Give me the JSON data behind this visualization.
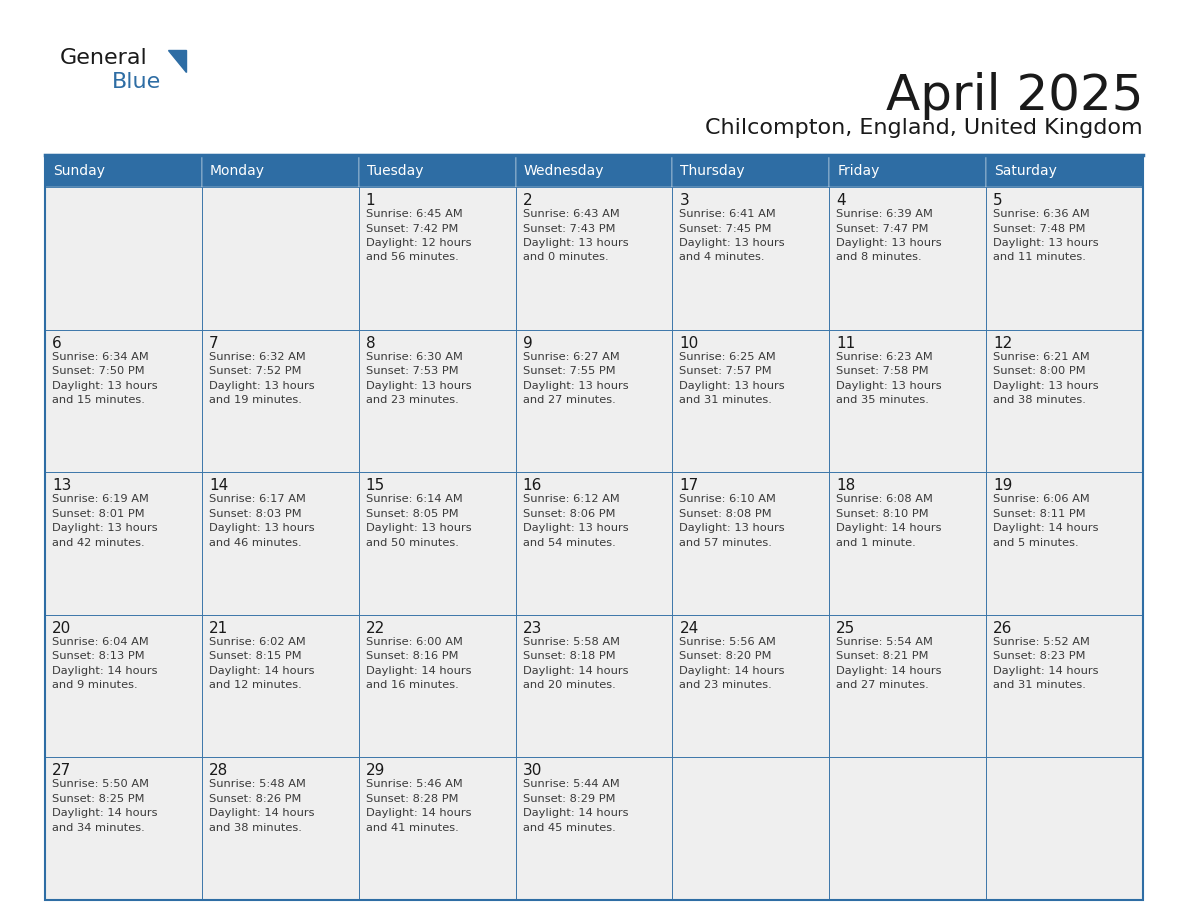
{
  "title": "April 2025",
  "subtitle": "Chilcompton, England, United Kingdom",
  "header_bg": "#2E6DA4",
  "header_text_color": "#FFFFFF",
  "cell_bg_light": "#EFEFEF",
  "border_color": "#2E6DA4",
  "title_color": "#1a1a1a",
  "subtitle_color": "#1a1a1a",
  "day_num_color": "#1a1a1a",
  "cell_text_color": "#3a3a3a",
  "day_names": [
    "Sunday",
    "Monday",
    "Tuesday",
    "Wednesday",
    "Thursday",
    "Friday",
    "Saturday"
  ],
  "days": [
    {
      "day": null,
      "sunrise": null,
      "sunset": null,
      "daylight": null
    },
    {
      "day": null,
      "sunrise": null,
      "sunset": null,
      "daylight": null
    },
    {
      "day": 1,
      "sunrise": "6:45 AM",
      "sunset": "7:42 PM",
      "daylight": "12 hours\nand 56 minutes."
    },
    {
      "day": 2,
      "sunrise": "6:43 AM",
      "sunset": "7:43 PM",
      "daylight": "13 hours\nand 0 minutes."
    },
    {
      "day": 3,
      "sunrise": "6:41 AM",
      "sunset": "7:45 PM",
      "daylight": "13 hours\nand 4 minutes."
    },
    {
      "day": 4,
      "sunrise": "6:39 AM",
      "sunset": "7:47 PM",
      "daylight": "13 hours\nand 8 minutes."
    },
    {
      "day": 5,
      "sunrise": "6:36 AM",
      "sunset": "7:48 PM",
      "daylight": "13 hours\nand 11 minutes."
    },
    {
      "day": 6,
      "sunrise": "6:34 AM",
      "sunset": "7:50 PM",
      "daylight": "13 hours\nand 15 minutes."
    },
    {
      "day": 7,
      "sunrise": "6:32 AM",
      "sunset": "7:52 PM",
      "daylight": "13 hours\nand 19 minutes."
    },
    {
      "day": 8,
      "sunrise": "6:30 AM",
      "sunset": "7:53 PM",
      "daylight": "13 hours\nand 23 minutes."
    },
    {
      "day": 9,
      "sunrise": "6:27 AM",
      "sunset": "7:55 PM",
      "daylight": "13 hours\nand 27 minutes."
    },
    {
      "day": 10,
      "sunrise": "6:25 AM",
      "sunset": "7:57 PM",
      "daylight": "13 hours\nand 31 minutes."
    },
    {
      "day": 11,
      "sunrise": "6:23 AM",
      "sunset": "7:58 PM",
      "daylight": "13 hours\nand 35 minutes."
    },
    {
      "day": 12,
      "sunrise": "6:21 AM",
      "sunset": "8:00 PM",
      "daylight": "13 hours\nand 38 minutes."
    },
    {
      "day": 13,
      "sunrise": "6:19 AM",
      "sunset": "8:01 PM",
      "daylight": "13 hours\nand 42 minutes."
    },
    {
      "day": 14,
      "sunrise": "6:17 AM",
      "sunset": "8:03 PM",
      "daylight": "13 hours\nand 46 minutes."
    },
    {
      "day": 15,
      "sunrise": "6:14 AM",
      "sunset": "8:05 PM",
      "daylight": "13 hours\nand 50 minutes."
    },
    {
      "day": 16,
      "sunrise": "6:12 AM",
      "sunset": "8:06 PM",
      "daylight": "13 hours\nand 54 minutes."
    },
    {
      "day": 17,
      "sunrise": "6:10 AM",
      "sunset": "8:08 PM",
      "daylight": "13 hours\nand 57 minutes."
    },
    {
      "day": 18,
      "sunrise": "6:08 AM",
      "sunset": "8:10 PM",
      "daylight": "14 hours\nand 1 minute."
    },
    {
      "day": 19,
      "sunrise": "6:06 AM",
      "sunset": "8:11 PM",
      "daylight": "14 hours\nand 5 minutes."
    },
    {
      "day": 20,
      "sunrise": "6:04 AM",
      "sunset": "8:13 PM",
      "daylight": "14 hours\nand 9 minutes."
    },
    {
      "day": 21,
      "sunrise": "6:02 AM",
      "sunset": "8:15 PM",
      "daylight": "14 hours\nand 12 minutes."
    },
    {
      "day": 22,
      "sunrise": "6:00 AM",
      "sunset": "8:16 PM",
      "daylight": "14 hours\nand 16 minutes."
    },
    {
      "day": 23,
      "sunrise": "5:58 AM",
      "sunset": "8:18 PM",
      "daylight": "14 hours\nand 20 minutes."
    },
    {
      "day": 24,
      "sunrise": "5:56 AM",
      "sunset": "8:20 PM",
      "daylight": "14 hours\nand 23 minutes."
    },
    {
      "day": 25,
      "sunrise": "5:54 AM",
      "sunset": "8:21 PM",
      "daylight": "14 hours\nand 27 minutes."
    },
    {
      "day": 26,
      "sunrise": "5:52 AM",
      "sunset": "8:23 PM",
      "daylight": "14 hours\nand 31 minutes."
    },
    {
      "day": 27,
      "sunrise": "5:50 AM",
      "sunset": "8:25 PM",
      "daylight": "14 hours\nand 34 minutes."
    },
    {
      "day": 28,
      "sunrise": "5:48 AM",
      "sunset": "8:26 PM",
      "daylight": "14 hours\nand 38 minutes."
    },
    {
      "day": 29,
      "sunrise": "5:46 AM",
      "sunset": "8:28 PM",
      "daylight": "14 hours\nand 41 minutes."
    },
    {
      "day": 30,
      "sunrise": "5:44 AM",
      "sunset": "8:29 PM",
      "daylight": "14 hours\nand 45 minutes."
    },
    {
      "day": null,
      "sunrise": null,
      "sunset": null,
      "daylight": null
    },
    {
      "day": null,
      "sunrise": null,
      "sunset": null,
      "daylight": null
    },
    {
      "day": null,
      "sunrise": null,
      "sunset": null,
      "daylight": null
    },
    {
      "day": null,
      "sunrise": null,
      "sunset": null,
      "daylight": null
    }
  ],
  "logo_general_color": "#1a1a1a",
  "logo_blue_color": "#2E6DA4",
  "logo_triangle_color": "#2E6DA4"
}
